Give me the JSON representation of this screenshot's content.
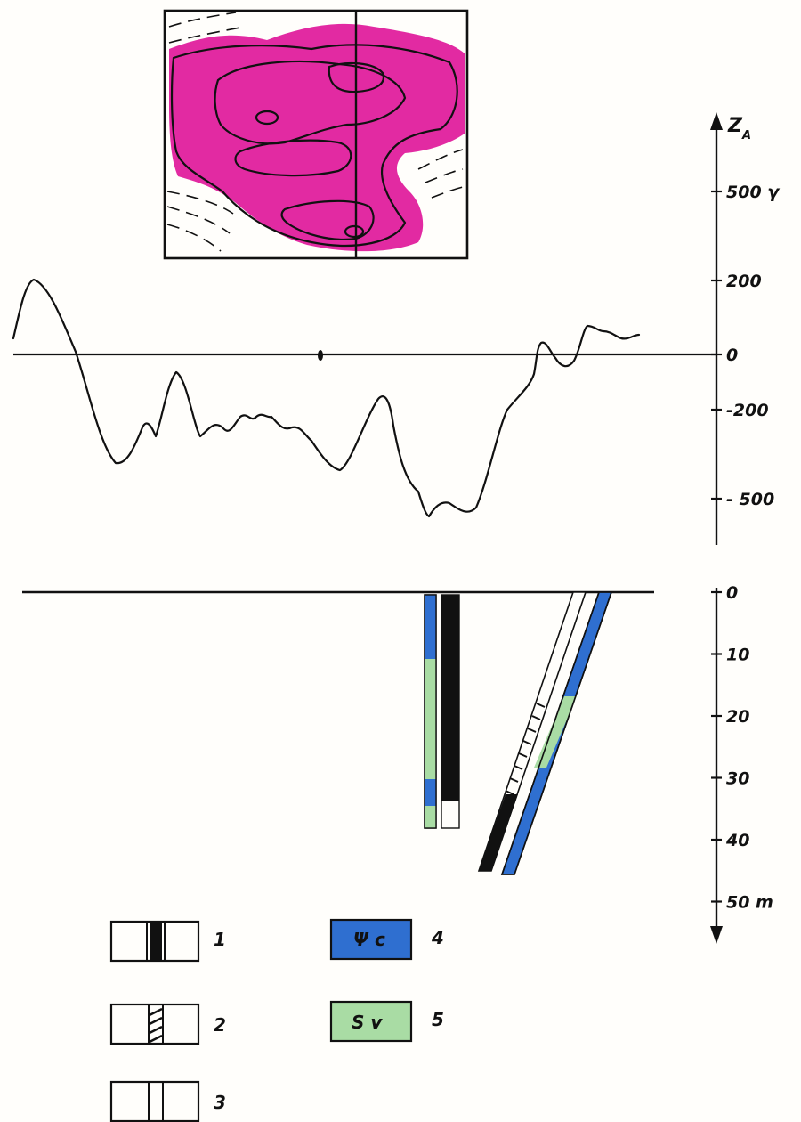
{
  "axis": {
    "magnetic_label": "Z",
    "magnetic_label_sub": "A",
    "magnetic_ticks": [
      {
        "text": "500 γ",
        "value": 500
      },
      {
        "text": "200",
        "value": 200
      },
      {
        "text": "0",
        "value": 0
      },
      {
        "text": "-200",
        "value": -200
      },
      {
        "text": "- 500",
        "value": -500
      }
    ],
    "depth_ticks": [
      {
        "text": "0",
        "value": 0
      },
      {
        "text": "10",
        "value": 10
      },
      {
        "text": "20",
        "value": 20
      },
      {
        "text": "30",
        "value": 30
      },
      {
        "text": "40",
        "value": 40
      },
      {
        "text": "50 m",
        "value": 50
      }
    ]
  },
  "legend": [
    {
      "number": "1",
      "pattern": "solid-black-band",
      "symbol": ""
    },
    {
      "number": "2",
      "pattern": "hatched-band",
      "symbol": ""
    },
    {
      "number": "3",
      "pattern": "open-band",
      "symbol": ""
    },
    {
      "number": "4",
      "pattern": "blue-fill",
      "symbol": "Ψ c",
      "color": "#2f6fd0"
    },
    {
      "number": "5",
      "pattern": "green-fill",
      "symbol": "S v",
      "color": "#a9dca4"
    }
  ],
  "colors": {
    "anomaly_map": "#e0189a",
    "rock_blue": "#2f6fd0",
    "rock_green": "#a9dca4",
    "ink": "#111111"
  }
}
